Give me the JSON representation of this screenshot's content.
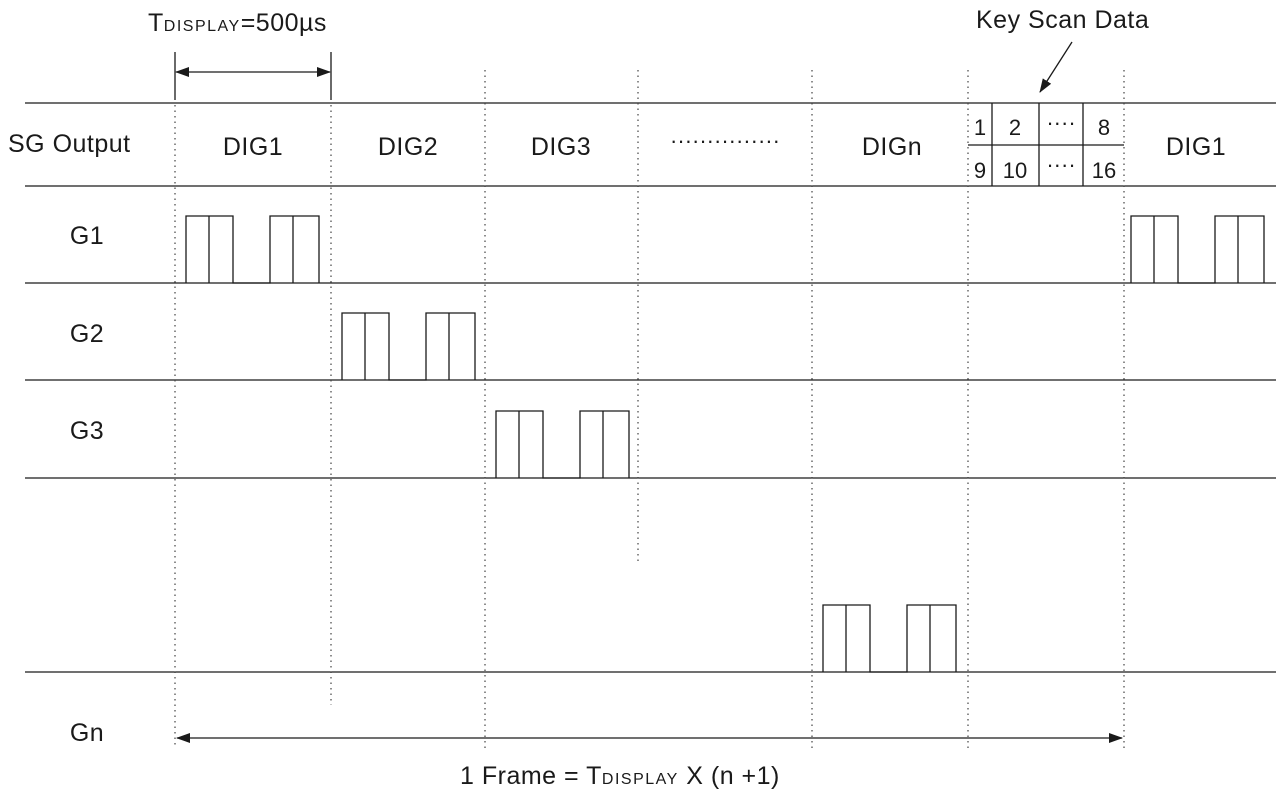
{
  "tdisplay_label": {
    "main": "T",
    "sub": "DISPLAY",
    "eq": "=500",
    "unit": "µs"
  },
  "key_scan_label": "Key Scan Data",
  "header": {
    "row_label": "SG Output",
    "columns": [
      "DIG1",
      "DIG2",
      "DIG3",
      "DIGn",
      "DIG1"
    ],
    "ellipsis": "···············",
    "key_scan_top": [
      "1",
      "2",
      "8"
    ],
    "key_scan_bottom": [
      "9",
      "10",
      "16"
    ],
    "key_scan_dots": "····"
  },
  "rows": [
    "G1",
    "G2",
    "G3",
    "Gn"
  ],
  "frame_label": {
    "pre": "1 Frame = T",
    "sub": "DISPLAY",
    "post": " X (n +1)"
  }
}
